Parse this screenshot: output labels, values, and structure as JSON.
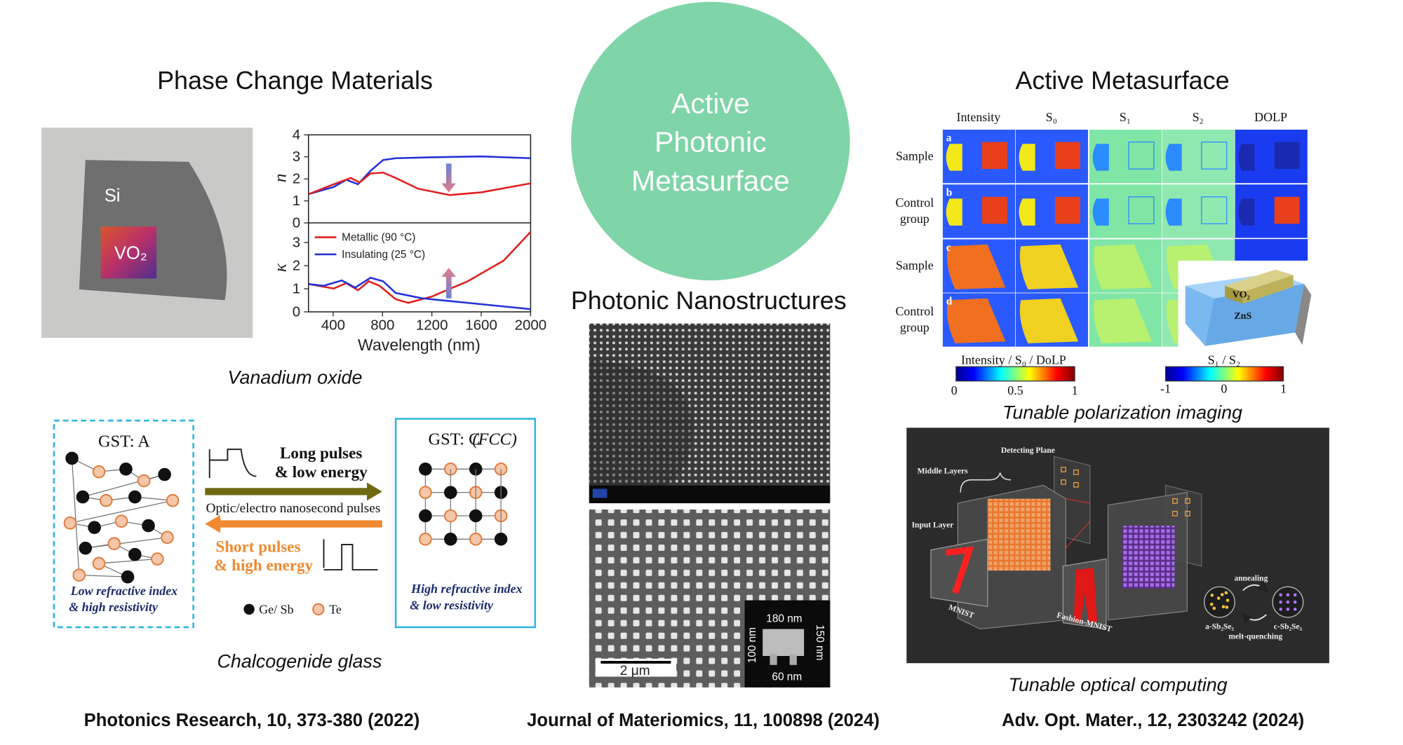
{
  "center": {
    "title_lines": [
      "Active",
      "Photonic",
      "Metasurface"
    ]
  },
  "left": {
    "title": "Phase Change Materials",
    "photo_labels": [
      "Si",
      "VO₂"
    ],
    "plot": {
      "n_label": "n",
      "kappa_label": "κ",
      "x_label": "Wavelength (nm)",
      "n_ticks": [
        0,
        1,
        2,
        3,
        4
      ],
      "kappa_ticks": [
        0,
        1,
        2,
        3
      ],
      "x_ticks": [
        400,
        800,
        1200,
        1600,
        2000
      ],
      "legend": [
        "Metallic (90 °C)",
        "Insulating (25 °C)"
      ]
    },
    "caption_top": "Vanadium oxide",
    "gst": {
      "state_a": "GST: A",
      "state_c": "GST: C",
      "state_c_note": "(FCC)",
      "long": [
        "Long pulses",
        "& low energy"
      ],
      "middle": "Optic/electro nanosecond pulses",
      "short": [
        "Short  pulses",
        "& high energy"
      ],
      "a_props": [
        "Low refractive index",
        "& high resistivity"
      ],
      "c_props": [
        "High refractive index",
        "& low resistivity"
      ],
      "legend": [
        "Ge/ Sb",
        "Te"
      ]
    },
    "caption_bottom": "Chalcogenide glass",
    "reference": "Photonics Research, 10, 373-380 (2022)"
  },
  "middle": {
    "title": "Photonic Nanostructures",
    "inset_labels": [
      "180 nm",
      "150 nm",
      "100 nm",
      "60 nm"
    ],
    "scale_bar": "2 μm",
    "reference": "Journal of Materiomics, 11, 100898 (2024)"
  },
  "right": {
    "title": "Active Metasurface",
    "columns": [
      "Intensity",
      "S₀",
      "S₁",
      "S₂",
      "DOLP"
    ],
    "rows": [
      [
        "Sample"
      ],
      [
        "Control",
        "group"
      ],
      [
        "Sample"
      ],
      [
        "Control",
        "group"
      ]
    ],
    "panel_letters": [
      "a",
      "b",
      "c",
      "d"
    ],
    "device_labels": [
      "VO₂",
      "ZnS"
    ],
    "colorbar1": {
      "title": "Intensity / S₀ / DoLP",
      "ticks": [
        "0",
        "0.5",
        "1"
      ]
    },
    "colorbar2": {
      "title": "S₁ / S₂",
      "ticks": [
        "-1",
        "0",
        "1"
      ]
    },
    "caption_top": "Tunable polarization imaging",
    "computing_labels": [
      "Detecting Plane",
      "Middle Layers",
      "Input Layer",
      "MNIST",
      "Fashion-MNIST",
      "annealing",
      "melt-quenching",
      "a-Sb₂Se₃",
      "c-Sb₂Se₃"
    ],
    "caption_bottom": "Tunable optical computing",
    "reference": "Adv. Opt. Mater., 12, 2303242 (2024)"
  }
}
